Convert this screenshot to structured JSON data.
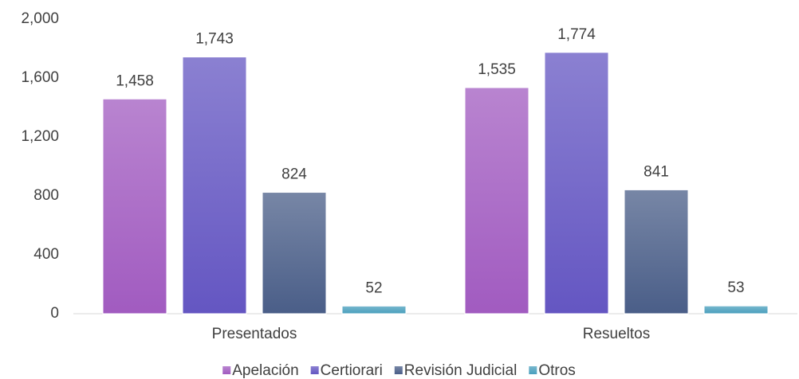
{
  "chart_data": {
    "type": "bar",
    "categories": [
      "Presentados",
      "Resueltos"
    ],
    "series": [
      {
        "name": "Apelación",
        "color": "#a15bc0",
        "values": [
          1458,
          1535
        ],
        "value_labels": [
          "1,458",
          "1,535"
        ]
      },
      {
        "name": "Certiorari",
        "color": "#6456c2",
        "values": [
          1743,
          1774
        ],
        "value_labels": [
          "1,743",
          "1,774"
        ]
      },
      {
        "name": "Revisión Judicial",
        "color": "#4a5e88",
        "values": [
          824,
          841
        ],
        "value_labels": [
          "824",
          "841"
        ]
      },
      {
        "name": "Otros",
        "color": "#4a9fbd",
        "values": [
          52,
          53
        ],
        "value_labels": [
          "52",
          "53"
        ]
      }
    ],
    "ylim": [
      0,
      2000
    ],
    "yticks": [
      0,
      400,
      800,
      {
        "value": 1200,
        "label": "1,200"
      },
      {
        "value": 1600,
        "label": "1,600"
      },
      {
        "value": 2000,
        "label": "2,000"
      }
    ],
    "grid": false,
    "legend": "bottom"
  }
}
